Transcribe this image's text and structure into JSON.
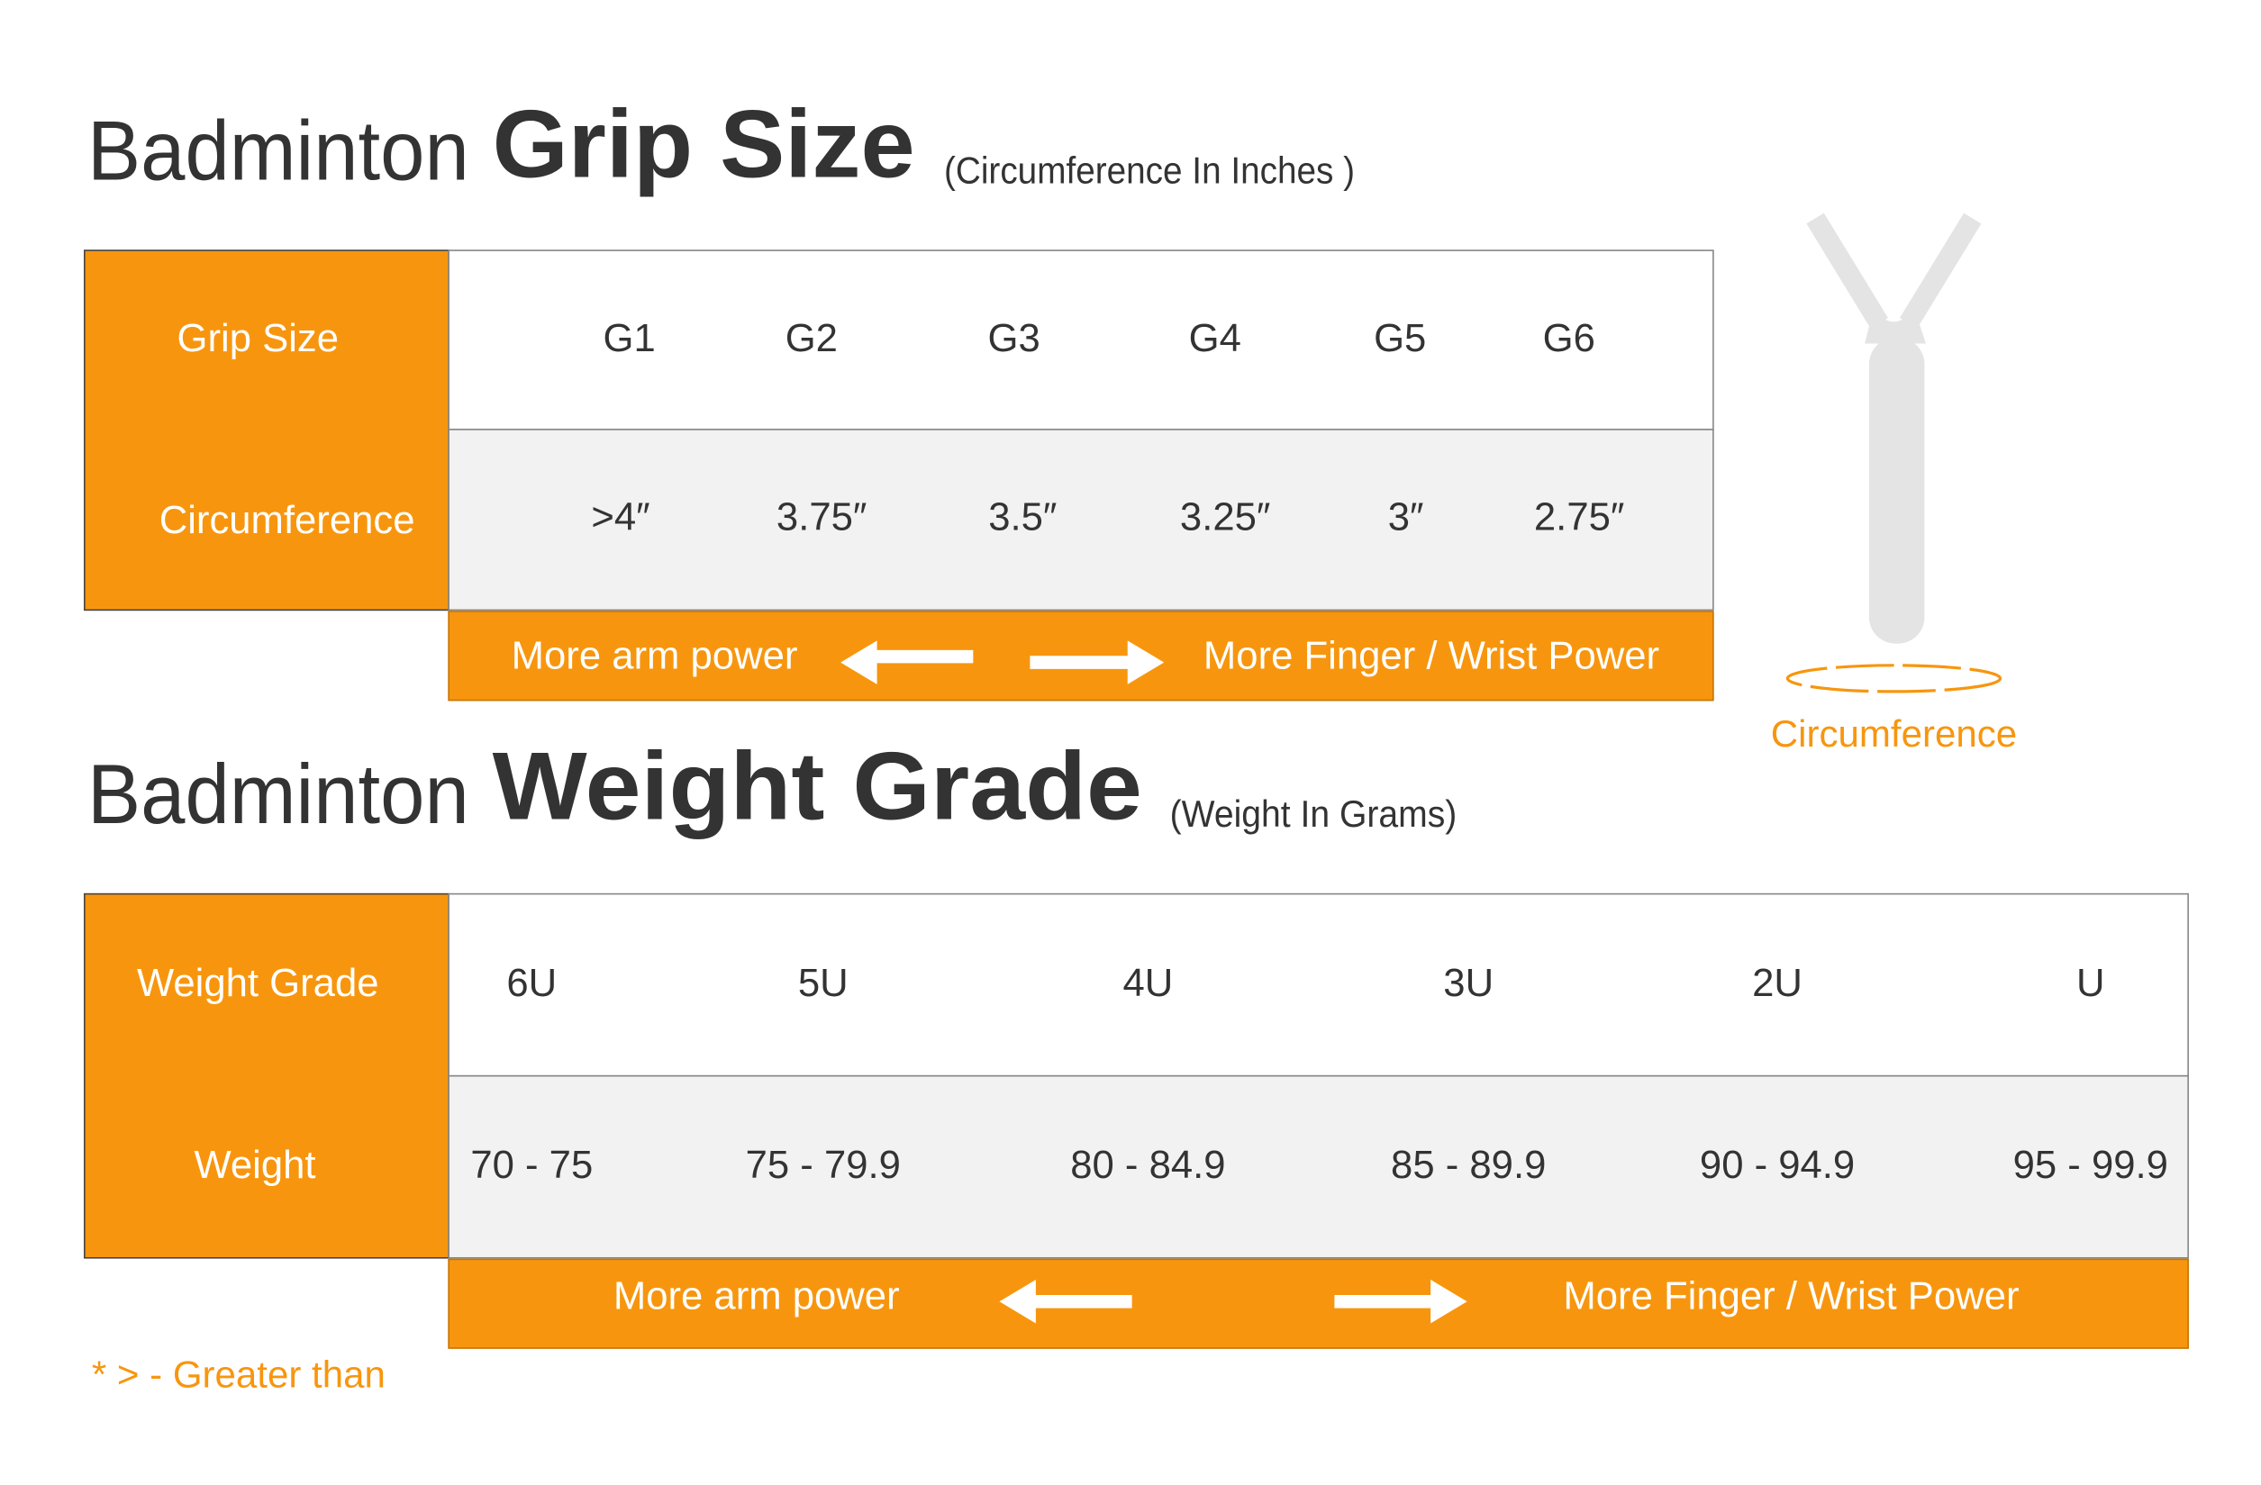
{
  "grip": {
    "title_light": "Badminton",
    "title_bold": "Grip Size",
    "subtitle": "(Circumference In Inches )",
    "row_headers": [
      "Grip Size",
      "Circumference"
    ],
    "sizes": [
      "G1",
      "G2",
      "G3",
      "G4",
      "G5",
      "G6"
    ],
    "circumferences": [
      ">4″",
      "3.75″",
      "3.5″",
      "3.25″",
      "3″",
      "2.75″"
    ],
    "left_label": "More arm power",
    "right_label": "More Finger / Wrist Power"
  },
  "diagram_label": "Circumference",
  "weight": {
    "title_light": "Badminton",
    "title_bold": "Weight Grade",
    "subtitle": "(Weight In Grams)",
    "row_headers": [
      "Weight Grade",
      "Weight"
    ],
    "grades": [
      "6U",
      "5U",
      "4U",
      "3U",
      "2U",
      "U"
    ],
    "weights": [
      "70 - 75",
      "75 - 79.9",
      "80 - 84.9",
      "85 - 89.9",
      "90 - 94.9",
      "95 - 99.9"
    ],
    "left_label": "More arm power",
    "right_label": "More Finger / Wrist Power"
  },
  "footnote": "* > - Greater than"
}
